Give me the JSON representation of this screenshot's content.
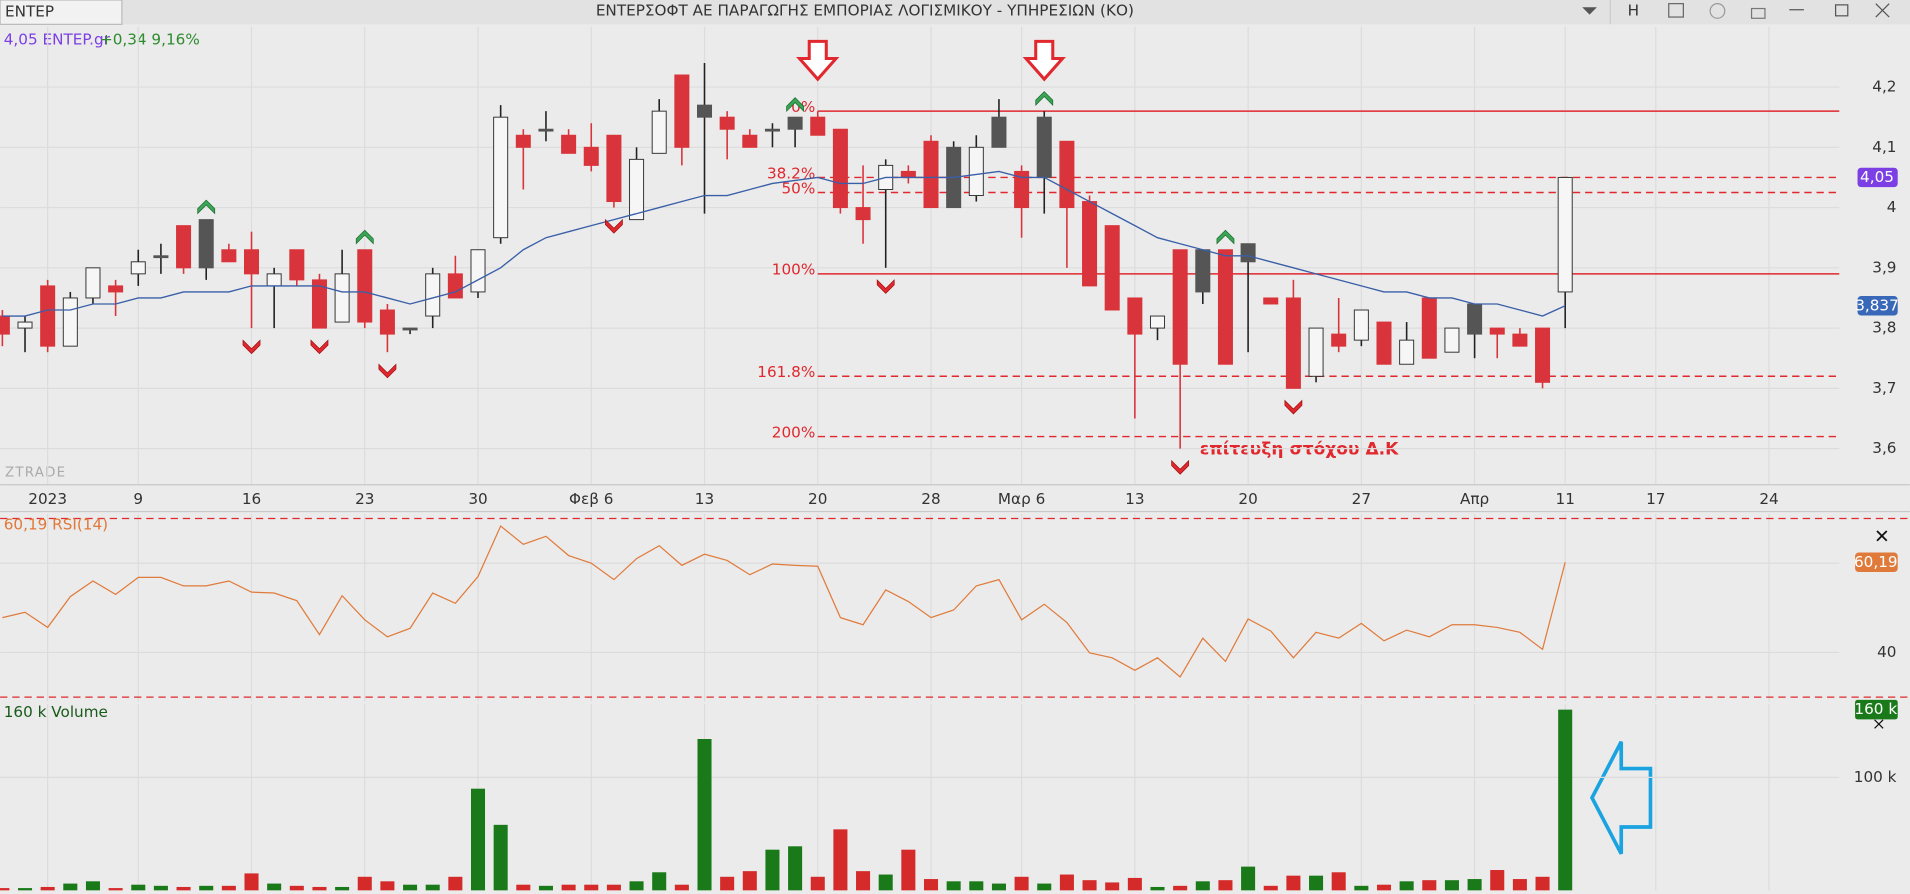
{
  "header": {
    "tab": "ΕΝΤΕΡ",
    "title": "ΕΝΤΕΡΣΟΦΤ ΑΕ ΠΑΡΑΓΩΓΗΣ ΕΜΠΟΡΙΑΣ ΛΟΓΙΣΜΙΚΟΥ - ΥΠΗΡΕΣΙΩΝ  (ΚΟ)",
    "button": "Η"
  },
  "legend": {
    "price": "4,05 ENTEP.gr",
    "change": "+0,34 9,16%"
  },
  "watermark": "ZTRADE",
  "annotation": "επίτευξη στόχου Δ.Κ",
  "chart_data": {
    "type": "candlestick",
    "xlim": [
      -0.1,
      81.1
    ],
    "xticks": [
      {
        "value": 2,
        "label": "2023"
      },
      {
        "value": 6,
        "label": "9"
      },
      {
        "value": 11,
        "label": "16"
      },
      {
        "value": 16,
        "label": "23"
      },
      {
        "value": 21,
        "label": "30"
      },
      {
        "value": 26,
        "label": "Φεβ 6"
      },
      {
        "value": 31,
        "label": "13"
      },
      {
        "value": 36,
        "label": "20"
      },
      {
        "value": 41,
        "label": "28"
      },
      {
        "value": 45,
        "label": "Μαρ 6"
      },
      {
        "value": 50,
        "label": "13"
      },
      {
        "value": 55,
        "label": "20"
      },
      {
        "value": 60,
        "label": "27"
      },
      {
        "value": 65,
        "label": "Απρ"
      },
      {
        "value": 69,
        "label": "11"
      },
      {
        "value": 73,
        "label": "17"
      },
      {
        "value": 78,
        "label": "24"
      }
    ],
    "ylim": [
      3.54,
      4.3
    ],
    "yticks": [
      {
        "value": 3.6,
        "label": "3,6"
      },
      {
        "value": 3.7,
        "label": "3,7"
      },
      {
        "value": 3.8,
        "label": "3,8"
      },
      {
        "value": 3.9,
        "label": "3,9"
      },
      {
        "value": 4.0,
        "label": "4"
      },
      {
        "value": 4.1,
        "label": "4,1"
      },
      {
        "value": 4.2,
        "label": "4,2"
      }
    ],
    "open": [
      3.82,
      3.8,
      3.87,
      3.77,
      3.85,
      3.87,
      3.89,
      3.92,
      3.97,
      3.9,
      3.93,
      3.93,
      3.87,
      3.93,
      3.88,
      3.81,
      3.93,
      3.83,
      3.8,
      3.82,
      3.89,
      3.86,
      3.95,
      4.12,
      4.13,
      4.12,
      4.1,
      4.12,
      3.98,
      4.09,
      4.22,
      4.15,
      4.15,
      4.12,
      4.13,
      4.13,
      4.15,
      4.13,
      4.0,
      4.03,
      4.06,
      4.11,
      4.0,
      4.02,
      4.1,
      4.06,
      4.05,
      4.11,
      4.01,
      3.97,
      3.85,
      3.8,
      3.93,
      3.86,
      3.93,
      3.91,
      3.85,
      3.85,
      3.72,
      3.79,
      3.78,
      3.81,
      3.74,
      3.85,
      3.76,
      3.79,
      3.8,
      3.79,
      3.8,
      3.86
    ],
    "high": [
      3.83,
      3.82,
      3.88,
      3.86,
      3.9,
      3.88,
      3.93,
      3.94,
      3.97,
      3.98,
      3.94,
      3.96,
      3.9,
      3.93,
      3.89,
      3.93,
      3.93,
      3.84,
      3.8,
      3.9,
      3.92,
      3.93,
      4.17,
      4.13,
      4.16,
      4.13,
      4.14,
      4.12,
      4.1,
      4.18,
      4.22,
      4.24,
      4.16,
      4.13,
      4.14,
      4.15,
      4.16,
      4.13,
      4.07,
      4.08,
      4.07,
      4.12,
      4.11,
      4.12,
      4.18,
      4.07,
      4.16,
      4.11,
      4.02,
      3.97,
      3.85,
      3.82,
      3.93,
      3.93,
      3.93,
      3.94,
      3.85,
      3.88,
      3.8,
      3.85,
      3.83,
      3.81,
      3.81,
      3.85,
      3.8,
      3.84,
      3.8,
      3.8,
      3.8,
      4.05
    ],
    "low": [
      3.77,
      3.76,
      3.76,
      3.77,
      3.84,
      3.82,
      3.87,
      3.89,
      3.89,
      3.88,
      3.91,
      3.8,
      3.8,
      3.87,
      3.8,
      3.81,
      3.8,
      3.76,
      3.79,
      3.8,
      3.85,
      3.85,
      3.94,
      4.03,
      4.11,
      4.09,
      4.06,
      4.0,
      3.98,
      4.09,
      4.07,
      3.99,
      4.08,
      4.1,
      4.1,
      4.1,
      4.12,
      3.99,
      3.94,
      3.9,
      4.04,
      4.0,
      4.0,
      4.01,
      4.1,
      3.95,
      3.99,
      3.9,
      3.87,
      3.83,
      3.65,
      3.78,
      3.6,
      3.84,
      3.74,
      3.76,
      3.84,
      3.7,
      3.71,
      3.76,
      3.77,
      3.74,
      3.74,
      3.75,
      3.76,
      3.75,
      3.75,
      3.77,
      3.7,
      3.8
    ],
    "close": [
      3.79,
      3.81,
      3.77,
      3.85,
      3.9,
      3.86,
      3.91,
      3.92,
      3.9,
      3.98,
      3.91,
      3.89,
      3.89,
      3.88,
      3.8,
      3.89,
      3.81,
      3.79,
      3.8,
      3.89,
      3.85,
      3.93,
      4.15,
      4.1,
      4.13,
      4.09,
      4.07,
      4.01,
      4.08,
      4.16,
      4.1,
      4.17,
      4.13,
      4.1,
      4.13,
      4.15,
      4.12,
      4.0,
      3.98,
      4.07,
      4.05,
      4.0,
      4.1,
      4.1,
      4.15,
      4.0,
      4.15,
      4.0,
      3.87,
      3.83,
      3.79,
      3.82,
      3.74,
      3.93,
      3.74,
      3.94,
      3.84,
      3.7,
      3.8,
      3.77,
      3.83,
      3.74,
      3.78,
      3.75,
      3.8,
      3.84,
      3.79,
      3.77,
      3.71,
      4.05
    ],
    "candle_colors": [
      "#d9343b",
      "#f6f6f6",
      "#d9343b",
      "#f6f6f6",
      "#f6f6f6",
      "#d9343b",
      "#f6f6f6",
      "#555555",
      "#d9343b",
      "#555555",
      "#d9343b",
      "#d9343b",
      "#f6f6f6",
      "#d9343b",
      "#d9343b",
      "#f6f6f6",
      "#d9343b",
      "#d9343b",
      "#555555",
      "#f6f6f6",
      "#d9343b",
      "#f6f6f6",
      "#f6f6f6",
      "#d9343b",
      "#555555",
      "#d9343b",
      "#d9343b",
      "#d9343b",
      "#f6f6f6",
      "#f6f6f6",
      "#d9343b",
      "#555555",
      "#d9343b",
      "#d9343b",
      "#555555",
      "#555555",
      "#d9343b",
      "#d9343b",
      "#d9343b",
      "#f6f6f6",
      "#d9343b",
      "#d9343b",
      "#555555",
      "#f6f6f6",
      "#555555",
      "#d9343b",
      "#555555",
      "#d9343b",
      "#d9343b",
      "#d9343b",
      "#d9343b",
      "#f6f6f6",
      "#d9343b",
      "#555555",
      "#d9343b",
      "#555555",
      "#d9343b",
      "#d9343b",
      "#f6f6f6",
      "#d9343b",
      "#f6f6f6",
      "#d9343b",
      "#f6f6f6",
      "#d9343b",
      "#f6f6f6",
      "#555555",
      "#d9343b",
      "#d9343b",
      "#d9343b",
      "#f6f6f6"
    ],
    "ma": {
      "color": "#3a5fa8",
      "values": [
        3.82,
        3.82,
        3.83,
        3.83,
        3.84,
        3.84,
        3.85,
        3.85,
        3.86,
        3.86,
        3.86,
        3.87,
        3.87,
        3.87,
        3.87,
        3.86,
        3.86,
        3.85,
        3.84,
        3.85,
        3.86,
        3.88,
        3.9,
        3.93,
        3.95,
        3.96,
        3.97,
        3.98,
        3.99,
        4.0,
        4.01,
        4.02,
        4.02,
        4.03,
        4.04,
        4.045,
        4.05,
        4.04,
        4.04,
        4.05,
        4.05,
        4.05,
        4.05,
        4.055,
        4.06,
        4.05,
        4.05,
        4.03,
        4.01,
        3.99,
        3.97,
        3.95,
        3.94,
        3.93,
        3.92,
        3.92,
        3.91,
        3.9,
        3.89,
        3.88,
        3.87,
        3.86,
        3.86,
        3.85,
        3.85,
        3.84,
        3.84,
        3.83,
        3.82,
        3.837
      ]
    },
    "price_tag": {
      "value": 4.05,
      "label": "4,05",
      "color": "#7b3fe4"
    },
    "ma_tag": {
      "value": 3.837,
      "label": "3,837",
      "color": "#3a68b8"
    },
    "fib": {
      "color": "#e0282e",
      "start": 36,
      "levels": [
        {
          "value": 4.16,
          "label": "0%",
          "dashed": false
        },
        {
          "value": 4.05,
          "label": "38.2%",
          "dashed": true
        },
        {
          "value": 4.025,
          "label": "50%",
          "dashed": true
        },
        {
          "value": 3.89,
          "label": "100%",
          "dashed": false
        },
        {
          "value": 3.72,
          "label": "161.8%",
          "dashed": true
        },
        {
          "value": 3.62,
          "label": "200%",
          "dashed": true
        }
      ]
    },
    "up_signals": [
      9,
      16,
      35,
      46,
      54
    ],
    "down_signals": [
      11,
      14,
      17,
      27,
      39,
      52,
      57
    ],
    "big_arrows": [
      36,
      46
    ],
    "rsi": {
      "label": "60,19 RSI(14)",
      "color": "#e07a3a",
      "ylim": [
        29,
        71
      ],
      "yticks": [
        40,
        60
      ],
      "levels": [
        70,
        30
      ],
      "values": [
        47.8,
        49,
        45.6,
        52.5,
        56,
        53,
        56.8,
        56.8,
        54.9,
        54.9,
        56,
        53.5,
        53.3,
        51.6,
        44,
        52.7,
        47.3,
        43.5,
        45.4,
        53.3,
        51,
        57,
        68.3,
        64.2,
        66,
        61.7,
        60,
        56.3,
        61,
        63.9,
        59.5,
        62,
        60.6,
        57.4,
        59.8,
        59.5,
        59.3,
        47.8,
        46.2,
        54,
        51.4,
        47.8,
        49.5,
        54.9,
        56.3,
        47.3,
        50.8,
        46.7,
        39.9,
        38.8,
        36,
        38.8,
        34.5,
        43.2,
        38,
        47.5,
        44.8,
        38.8,
        44.5,
        43.2,
        46.5,
        42.6,
        45,
        43.5,
        46.2,
        46.2,
        45.6,
        44.5,
        40.7,
        60.19
      ],
      "tag": {
        "value": 60.19,
        "label": "60,19"
      }
    },
    "volume": {
      "label": "160 k Volume",
      "up_color": "#1a7a1a",
      "down_color": "#d42a2a",
      "ylim": [
        0,
        165
      ],
      "yticks": [
        {
          "value": 100,
          "label": "100 k"
        }
      ],
      "values": [
        2,
        2,
        3,
        6,
        8,
        2,
        5,
        4,
        3,
        4,
        4,
        15,
        6,
        4,
        3,
        3,
        12,
        8,
        5,
        5,
        12,
        90,
        58,
        5,
        4,
        5,
        5,
        5,
        8,
        16,
        5,
        134,
        12,
        17,
        36,
        39,
        12,
        54,
        17,
        14,
        36,
        10,
        8,
        8,
        6,
        12,
        6,
        14,
        9,
        7,
        11,
        3,
        4,
        8,
        9,
        21,
        4,
        13,
        13,
        16,
        4,
        5,
        8,
        9,
        9,
        10,
        18,
        10,
        12,
        160
      ],
      "tag": {
        "value": 160,
        "label": "160 k"
      }
    }
  }
}
